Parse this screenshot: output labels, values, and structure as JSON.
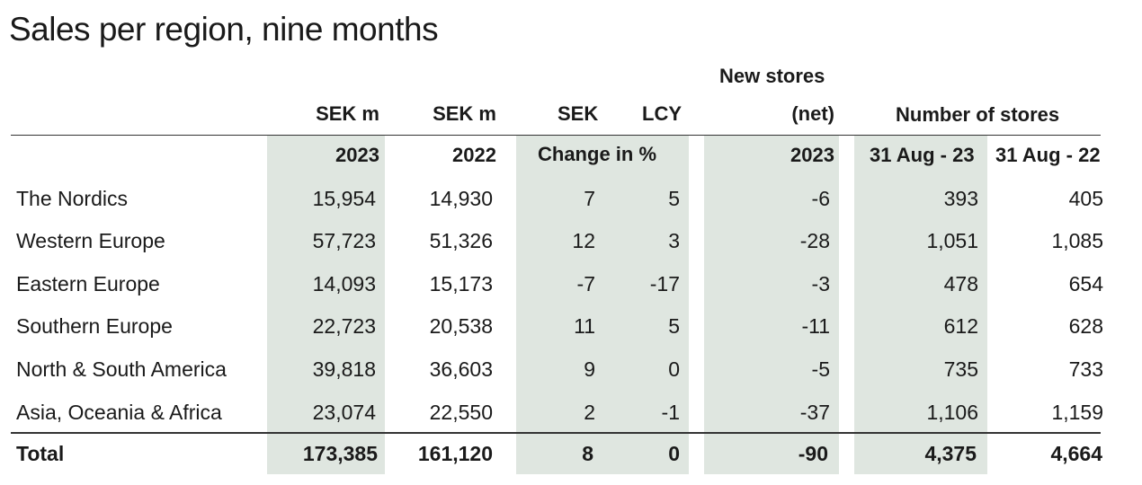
{
  "title": "Sales per region, nine months",
  "header": {
    "units": [
      "SEK m",
      "SEK m",
      "SEK",
      "LCY"
    ],
    "new_stores_line1": "New stores",
    "new_stores_line2": "(net)",
    "number_of_stores": "Number of stores",
    "year_2023": "2023",
    "year_2022": "2022",
    "change_in_pct": "Change in %",
    "new_stores_year": "2023",
    "date_2023": "31 Aug - 23",
    "date_2022": "31 Aug - 22"
  },
  "rows": [
    {
      "region": "The Nordics",
      "sek_2023": "15,954",
      "sek_2022": "14,930",
      "chg_sek": "7",
      "chg_lcy": "5",
      "new_stores": "-6",
      "stores_2023": "393",
      "stores_2022": "405"
    },
    {
      "region": "Western Europe",
      "sek_2023": "57,723",
      "sek_2022": "51,326",
      "chg_sek": "12",
      "chg_lcy": "3",
      "new_stores": "-28",
      "stores_2023": "1,051",
      "stores_2022": "1,085"
    },
    {
      "region": "Eastern Europe",
      "sek_2023": "14,093",
      "sek_2022": "15,173",
      "chg_sek": "-7",
      "chg_lcy": "-17",
      "new_stores": "-3",
      "stores_2023": "478",
      "stores_2022": "654"
    },
    {
      "region": "Southern Europe",
      "sek_2023": "22,723",
      "sek_2022": "20,538",
      "chg_sek": "11",
      "chg_lcy": "5",
      "new_stores": "-11",
      "stores_2023": "612",
      "stores_2022": "628"
    },
    {
      "region": "North & South America",
      "sek_2023": "39,818",
      "sek_2022": "36,603",
      "chg_sek": "9",
      "chg_lcy": "0",
      "new_stores": "-5",
      "stores_2023": "735",
      "stores_2022": "733"
    },
    {
      "region": "Asia, Oceania & Africa",
      "sek_2023": "23,074",
      "sek_2022": "22,550",
      "chg_sek": "2",
      "chg_lcy": "-1",
      "new_stores": "-37",
      "stores_2023": "1,106",
      "stores_2022": "1,159"
    }
  ],
  "total": {
    "region": "Total",
    "sek_2023": "173,385",
    "sek_2022": "161,120",
    "chg_sek": "8",
    "chg_lcy": "0",
    "new_stores": "-90",
    "stores_2023": "4,375",
    "stores_2022": "4,664"
  },
  "colors": {
    "shade": "#dfe6e0",
    "text": "#1a1a1a",
    "rule": "#333333"
  }
}
